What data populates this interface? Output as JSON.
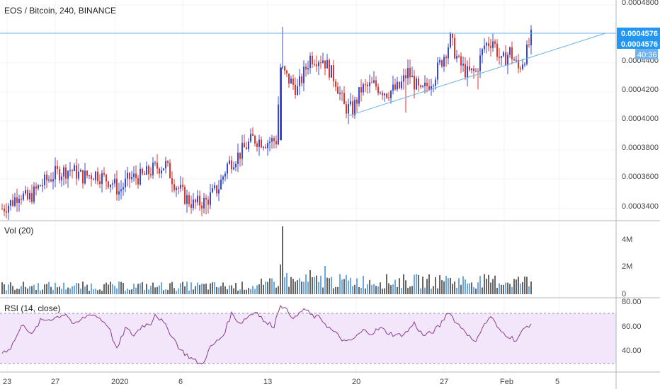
{
  "colors": {
    "up": "#3949d6",
    "down": "#e0342e",
    "vol_up": "#6fa8dc",
    "vol_down": "#666666",
    "line": "#6ab0e6",
    "rsi": "#8e3a8e",
    "rsi_band": "#f2e6fb",
    "label_bg": "#2196f3",
    "grid": "#f0f3fa",
    "axis_text": "#444444"
  },
  "main_pane": {
    "title": "EOS / Bitcoin, 240, BINANCE",
    "price_labels": [
      "0.0004800",
      "0.0004400",
      "0.0004200",
      "0.0004000",
      "0.0003800",
      "0.0003600",
      "0.0003400"
    ],
    "last_price": "0.0004576",
    "last_price_2": "0.0004576",
    "countdown": "40:36"
  },
  "volume_pane": {
    "title": "Vol (20)",
    "labels": [
      "4M",
      "2M",
      "0"
    ]
  },
  "rsi_pane": {
    "title": "RSI (14, close)",
    "labels": [
      "80.00",
      "60.00",
      "40.00"
    ]
  },
  "time_axis": {
    "labels": [
      "23",
      "27",
      "2020",
      "6",
      "13",
      "20",
      "27",
      "Feb",
      "5"
    ]
  },
  "chart_data": [
    {
      "type": "candlestick",
      "title": "EOS / Bitcoin, 240, BINANCE",
      "ylim": [
        0.000333,
        0.000485
      ],
      "resistance_level": 0.0004576,
      "rising_trendline": [
        [
          0.0003984,
          0.000459
        ]
      ],
      "keyframes": [
        {
          "i": 0,
          "c": 0.00034
        },
        {
          "i": 5,
          "c": 0.000345
        },
        {
          "i": 8,
          "c": 0.000351
        },
        {
          "i": 12,
          "c": 0.000346
        },
        {
          "i": 18,
          "c": 0.000356
        },
        {
          "i": 25,
          "c": 0.000364
        },
        {
          "i": 32,
          "c": 0.000367
        },
        {
          "i": 38,
          "c": 0.000362
        },
        {
          "i": 44,
          "c": 0.000364
        },
        {
          "i": 52,
          "c": 0.000358
        },
        {
          "i": 55,
          "c": 0.000352
        },
        {
          "i": 60,
          "c": 0.000361
        },
        {
          "i": 66,
          "c": 0.000362
        },
        {
          "i": 72,
          "c": 0.000368
        },
        {
          "i": 77,
          "c": 0.00037
        },
        {
          "i": 81,
          "c": 0.000358
        },
        {
          "i": 86,
          "c": 0.000348
        },
        {
          "i": 90,
          "c": 0.000343
        },
        {
          "i": 96,
          "c": 0.000345
        },
        {
          "i": 102,
          "c": 0.000355
        },
        {
          "i": 106,
          "c": 0.00037
        },
        {
          "i": 112,
          "c": 0.000378
        },
        {
          "i": 118,
          "c": 0.000388
        },
        {
          "i": 124,
          "c": 0.000386
        },
        {
          "i": 129,
          "c": 0.000387
        },
        {
          "i": 131,
          "c": 0.000437
        },
        {
          "i": 134,
          "c": 0.00043
        },
        {
          "i": 139,
          "c": 0.000422
        },
        {
          "i": 145,
          "c": 0.000444
        },
        {
          "i": 151,
          "c": 0.000443
        },
        {
          "i": 157,
          "c": 0.000428
        },
        {
          "i": 161,
          "c": 0.00041
        },
        {
          "i": 165,
          "c": 0.000408
        },
        {
          "i": 169,
          "c": 0.000422
        },
        {
          "i": 175,
          "c": 0.000425
        },
        {
          "i": 181,
          "c": 0.00042
        },
        {
          "i": 187,
          "c": 0.000423
        },
        {
          "i": 191,
          "c": 0.000434
        },
        {
          "i": 197,
          "c": 0.000419
        },
        {
          "i": 203,
          "c": 0.00043
        },
        {
          "i": 207,
          "c": 0.000442
        },
        {
          "i": 211,
          "c": 0.000456
        },
        {
          "i": 215,
          "c": 0.00044
        },
        {
          "i": 219,
          "c": 0.000433
        },
        {
          "i": 223,
          "c": 0.000434
        },
        {
          "i": 227,
          "c": 0.000452
        },
        {
          "i": 231,
          "c": 0.000456
        },
        {
          "i": 235,
          "c": 0.00044
        },
        {
          "i": 239,
          "c": 0.000448
        },
        {
          "i": 243,
          "c": 0.000436
        },
        {
          "i": 247,
          "c": 0.0004476
        },
        {
          "i": 249,
          "c": 0.0004576
        }
      ],
      "spikes": [
        {
          "i": 132,
          "h": 0.000465
        },
        {
          "i": 163,
          "l": 0.000398
        },
        {
          "i": 190,
          "l": 0.000406
        },
        {
          "i": 224,
          "l": 0.000422
        },
        {
          "i": 96,
          "l": 0.000336
        }
      ]
    },
    {
      "type": "bar",
      "title": "Vol (20)",
      "ylim": [
        0,
        5000000
      ],
      "base": 600000,
      "peaks": [
        {
          "i": 132,
          "v": 4800000
        },
        {
          "i": 131,
          "v": 2100000
        },
        {
          "i": 134,
          "v": 1500000
        },
        {
          "i": 145,
          "v": 1700000
        },
        {
          "i": 152,
          "v": 2000000
        },
        {
          "i": 150,
          "v": 1300000
        },
        {
          "i": 209,
          "v": 1300000
        },
        {
          "i": 228,
          "v": 1100000
        },
        {
          "i": 122,
          "v": 1100000
        }
      ]
    },
    {
      "type": "line",
      "title": "RSI (14, close)",
      "ylim": [
        25,
        82
      ],
      "band": [
        30,
        70
      ],
      "keyframes": [
        {
          "i": 0,
          "v": 38
        },
        {
          "i": 4,
          "v": 42
        },
        {
          "i": 10,
          "v": 62
        },
        {
          "i": 14,
          "v": 52
        },
        {
          "i": 18,
          "v": 64
        },
        {
          "i": 24,
          "v": 66
        },
        {
          "i": 30,
          "v": 70
        },
        {
          "i": 34,
          "v": 60
        },
        {
          "i": 38,
          "v": 66
        },
        {
          "i": 42,
          "v": 70
        },
        {
          "i": 46,
          "v": 66
        },
        {
          "i": 50,
          "v": 60
        },
        {
          "i": 54,
          "v": 40
        },
        {
          "i": 58,
          "v": 58
        },
        {
          "i": 62,
          "v": 52
        },
        {
          "i": 66,
          "v": 60
        },
        {
          "i": 70,
          "v": 62
        },
        {
          "i": 72,
          "v": 70
        },
        {
          "i": 76,
          "v": 62
        },
        {
          "i": 80,
          "v": 52
        },
        {
          "i": 84,
          "v": 40
        },
        {
          "i": 90,
          "v": 32
        },
        {
          "i": 94,
          "v": 28
        },
        {
          "i": 98,
          "v": 42
        },
        {
          "i": 104,
          "v": 52
        },
        {
          "i": 108,
          "v": 70
        },
        {
          "i": 112,
          "v": 62
        },
        {
          "i": 116,
          "v": 68
        },
        {
          "i": 120,
          "v": 72
        },
        {
          "i": 124,
          "v": 62
        },
        {
          "i": 128,
          "v": 60
        },
        {
          "i": 131,
          "v": 78
        },
        {
          "i": 134,
          "v": 72
        },
        {
          "i": 138,
          "v": 66
        },
        {
          "i": 142,
          "v": 74
        },
        {
          "i": 146,
          "v": 68
        },
        {
          "i": 150,
          "v": 66
        },
        {
          "i": 154,
          "v": 58
        },
        {
          "i": 158,
          "v": 52
        },
        {
          "i": 162,
          "v": 46
        },
        {
          "i": 166,
          "v": 50
        },
        {
          "i": 170,
          "v": 56
        },
        {
          "i": 174,
          "v": 54
        },
        {
          "i": 178,
          "v": 58
        },
        {
          "i": 182,
          "v": 54
        },
        {
          "i": 186,
          "v": 52
        },
        {
          "i": 190,
          "v": 54
        },
        {
          "i": 194,
          "v": 62
        },
        {
          "i": 198,
          "v": 52
        },
        {
          "i": 202,
          "v": 54
        },
        {
          "i": 206,
          "v": 60
        },
        {
          "i": 210,
          "v": 72
        },
        {
          "i": 214,
          "v": 62
        },
        {
          "i": 218,
          "v": 56
        },
        {
          "i": 222,
          "v": 46
        },
        {
          "i": 226,
          "v": 58
        },
        {
          "i": 230,
          "v": 68
        },
        {
          "i": 234,
          "v": 56
        },
        {
          "i": 238,
          "v": 52
        },
        {
          "i": 242,
          "v": 48
        },
        {
          "i": 246,
          "v": 58
        },
        {
          "i": 249,
          "v": 62
        }
      ]
    }
  ]
}
